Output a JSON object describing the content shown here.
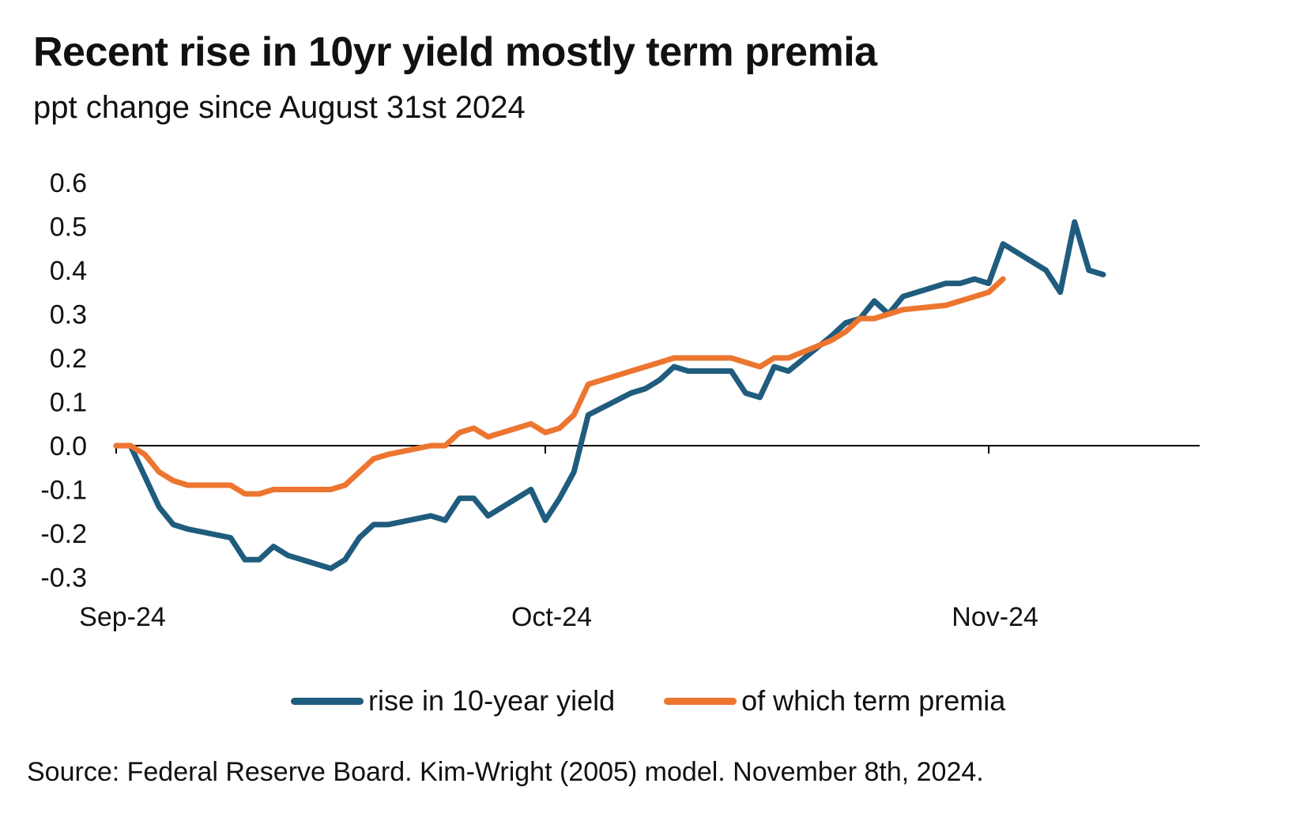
{
  "chart_data": {
    "type": "line",
    "title": "Recent rise in 10yr yield mostly term premia",
    "subtitle": "ppt change since August 31st 2024",
    "source": "Source: Federal Reserve Board. Kim-Wright (2005) model. November 8th, 2024.",
    "xlim": [
      "2024-08-31",
      "2024-11-22"
    ],
    "ylim": [
      -0.3,
      0.6
    ],
    "yticks": [
      "0.6",
      "0.5",
      "0.4",
      "0.3",
      "0.2",
      "0.1",
      "0.0",
      "-0.1",
      "-0.2",
      "-0.3"
    ],
    "xticks": [
      {
        "date": "2024-09-01",
        "label": "Sep-24"
      },
      {
        "date": "2024-10-01",
        "label": "Oct-24"
      },
      {
        "date": "2024-11-01",
        "label": "Nov-24"
      }
    ],
    "grid": false,
    "legend_position": "bottom",
    "series": [
      {
        "name": "rise in 10-year yield",
        "color": "#1f5c7e",
        "points": [
          [
            "2024-09-01",
            0.0
          ],
          [
            "2024-09-02",
            0.0
          ],
          [
            "2024-09-03",
            -0.07
          ],
          [
            "2024-09-04",
            -0.14
          ],
          [
            "2024-09-05",
            -0.18
          ],
          [
            "2024-09-06",
            -0.19
          ],
          [
            "2024-09-09",
            -0.21
          ],
          [
            "2024-09-10",
            -0.26
          ],
          [
            "2024-09-11",
            -0.26
          ],
          [
            "2024-09-12",
            -0.23
          ],
          [
            "2024-09-13",
            -0.25
          ],
          [
            "2024-09-16",
            -0.28
          ],
          [
            "2024-09-17",
            -0.26
          ],
          [
            "2024-09-18",
            -0.21
          ],
          [
            "2024-09-19",
            -0.18
          ],
          [
            "2024-09-20",
            -0.18
          ],
          [
            "2024-09-23",
            -0.16
          ],
          [
            "2024-09-24",
            -0.17
          ],
          [
            "2024-09-25",
            -0.12
          ],
          [
            "2024-09-26",
            -0.12
          ],
          [
            "2024-09-27",
            -0.16
          ],
          [
            "2024-09-30",
            -0.1
          ],
          [
            "2024-10-01",
            -0.17
          ],
          [
            "2024-10-02",
            -0.12
          ],
          [
            "2024-10-03",
            -0.06
          ],
          [
            "2024-10-04",
            0.07
          ],
          [
            "2024-10-07",
            0.12
          ],
          [
            "2024-10-08",
            0.13
          ],
          [
            "2024-10-09",
            0.15
          ],
          [
            "2024-10-10",
            0.18
          ],
          [
            "2024-10-11",
            0.17
          ],
          [
            "2024-10-14",
            0.17
          ],
          [
            "2024-10-15",
            0.12
          ],
          [
            "2024-10-16",
            0.11
          ],
          [
            "2024-10-17",
            0.18
          ],
          [
            "2024-10-18",
            0.17
          ],
          [
            "2024-10-21",
            0.25
          ],
          [
            "2024-10-22",
            0.28
          ],
          [
            "2024-10-23",
            0.29
          ],
          [
            "2024-10-24",
            0.33
          ],
          [
            "2024-10-25",
            0.3
          ],
          [
            "2024-10-26",
            0.34
          ],
          [
            "2024-10-29",
            0.37
          ],
          [
            "2024-10-30",
            0.37
          ],
          [
            "2024-10-31",
            0.38
          ],
          [
            "2024-11-01",
            0.37
          ],
          [
            "2024-11-02",
            0.46
          ],
          [
            "2024-11-05",
            0.4
          ],
          [
            "2024-11-06",
            0.35
          ],
          [
            "2024-11-07",
            0.51
          ],
          [
            "2024-11-08",
            0.4
          ],
          [
            "2024-11-09",
            0.39
          ]
        ]
      },
      {
        "name": "of which term premia",
        "color": "#ec7630",
        "points": [
          [
            "2024-09-01",
            0.0
          ],
          [
            "2024-09-02",
            0.0
          ],
          [
            "2024-09-03",
            -0.02
          ],
          [
            "2024-09-04",
            -0.06
          ],
          [
            "2024-09-05",
            -0.08
          ],
          [
            "2024-09-06",
            -0.09
          ],
          [
            "2024-09-09",
            -0.09
          ],
          [
            "2024-09-10",
            -0.11
          ],
          [
            "2024-09-11",
            -0.11
          ],
          [
            "2024-09-12",
            -0.1
          ],
          [
            "2024-09-13",
            -0.1
          ],
          [
            "2024-09-16",
            -0.1
          ],
          [
            "2024-09-17",
            -0.09
          ],
          [
            "2024-09-18",
            -0.06
          ],
          [
            "2024-09-19",
            -0.03
          ],
          [
            "2024-09-20",
            -0.02
          ],
          [
            "2024-09-23",
            0.0
          ],
          [
            "2024-09-24",
            0.0
          ],
          [
            "2024-09-25",
            0.03
          ],
          [
            "2024-09-26",
            0.04
          ],
          [
            "2024-09-27",
            0.02
          ],
          [
            "2024-09-30",
            0.05
          ],
          [
            "2024-10-01",
            0.03
          ],
          [
            "2024-10-02",
            0.04
          ],
          [
            "2024-10-03",
            0.07
          ],
          [
            "2024-10-04",
            0.14
          ],
          [
            "2024-10-07",
            0.17
          ],
          [
            "2024-10-08",
            0.18
          ],
          [
            "2024-10-09",
            0.19
          ],
          [
            "2024-10-10",
            0.2
          ],
          [
            "2024-10-11",
            0.2
          ],
          [
            "2024-10-14",
            0.2
          ],
          [
            "2024-10-15",
            0.19
          ],
          [
            "2024-10-16",
            0.18
          ],
          [
            "2024-10-17",
            0.2
          ],
          [
            "2024-10-18",
            0.2
          ],
          [
            "2024-10-21",
            0.24
          ],
          [
            "2024-10-22",
            0.26
          ],
          [
            "2024-10-23",
            0.29
          ],
          [
            "2024-10-24",
            0.29
          ],
          [
            "2024-10-25",
            0.3
          ],
          [
            "2024-10-26",
            0.31
          ],
          [
            "2024-10-29",
            0.32
          ],
          [
            "2024-10-30",
            0.33
          ],
          [
            "2024-10-31",
            0.34
          ],
          [
            "2024-11-01",
            0.35
          ],
          [
            "2024-11-02",
            0.38
          ]
        ]
      }
    ]
  }
}
